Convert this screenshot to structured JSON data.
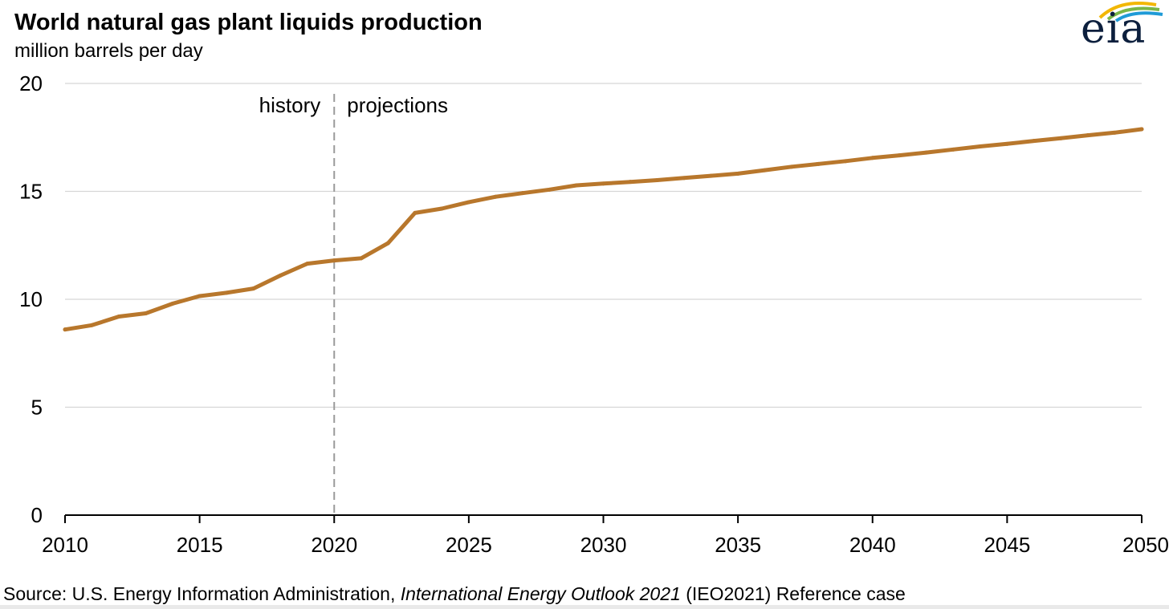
{
  "header": {
    "title": "World natural gas plant liquids production",
    "subtitle": "million barrels per day",
    "logo_text": "eia"
  },
  "annotations": {
    "history": "history",
    "projections": "projections"
  },
  "source": {
    "prefix": "Source:  U.S. Energy Information Administration, ",
    "publication": "International Energy Outlook 2021",
    "suffix": " (IEO2021) Reference case"
  },
  "colors": {
    "line": "#b8772c",
    "grid": "#d6d6d6",
    "divider": "#9a9a9a",
    "axis": "#000000"
  },
  "chart_data": {
    "type": "line",
    "title": "World natural gas plant liquids production",
    "ylabel": "million barrels per day",
    "xlim": [
      2010,
      2050
    ],
    "ylim": [
      0,
      20
    ],
    "x_ticks": [
      "2010",
      "2015",
      "2020",
      "2025",
      "2030",
      "2035",
      "2040",
      "2045",
      "2050"
    ],
    "y_ticks": [
      "0",
      "5",
      "10",
      "15",
      "20"
    ],
    "grid": true,
    "divider_x": 2020,
    "x": [
      2010,
      2011,
      2012,
      2013,
      2014,
      2015,
      2016,
      2017,
      2018,
      2019,
      2020,
      2021,
      2022,
      2023,
      2024,
      2025,
      2026,
      2027,
      2028,
      2029,
      2030,
      2031,
      2032,
      2033,
      2034,
      2035,
      2036,
      2037,
      2038,
      2039,
      2040,
      2041,
      2042,
      2043,
      2044,
      2045,
      2046,
      2047,
      2048,
      2049,
      2050
    ],
    "series": [
      {
        "values": [
          8.6,
          8.8,
          9.2,
          9.35,
          9.8,
          10.15,
          10.3,
          10.5,
          11.1,
          11.65,
          11.8,
          11.9,
          12.6,
          14.0,
          14.2,
          14.5,
          14.75,
          14.92,
          15.08,
          15.28,
          15.36,
          15.44,
          15.52,
          15.62,
          15.72,
          15.82,
          15.98,
          16.14,
          16.27,
          16.4,
          16.55,
          16.67,
          16.8,
          16.94,
          17.08,
          17.2,
          17.34,
          17.46,
          17.6,
          17.72,
          17.88
        ]
      }
    ]
  }
}
